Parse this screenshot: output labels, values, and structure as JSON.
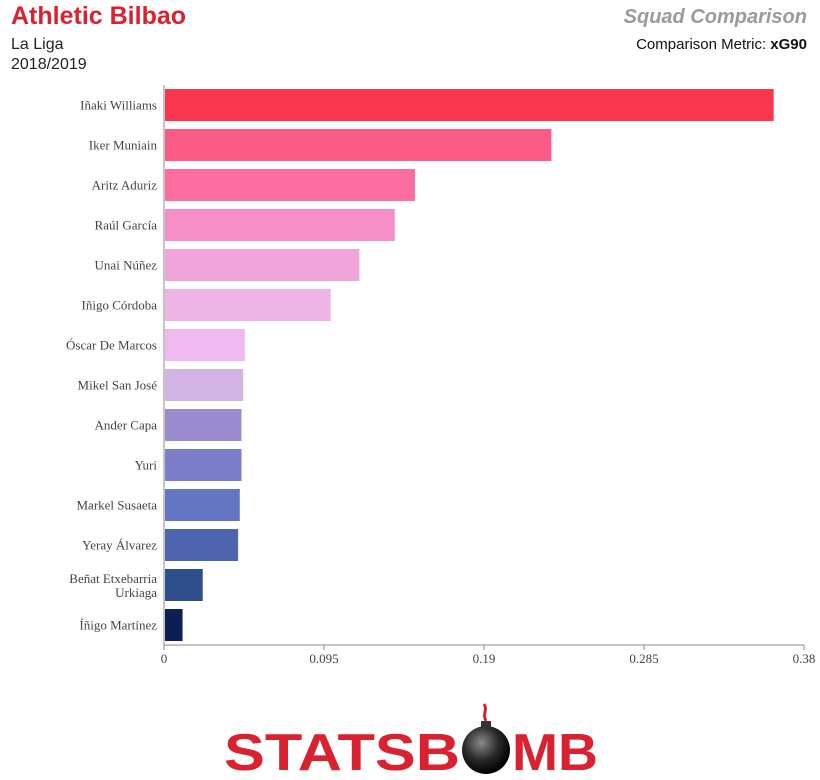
{
  "header": {
    "team": "Athletic Bilbao",
    "league": "La Liga",
    "season": "2018/2019",
    "page_title": "Squad Comparison",
    "metric_label": "Comparison Metric: ",
    "metric_value": "xG90"
  },
  "colors": {
    "title_red": "#d9212f",
    "subtitle_gray": "#9a9a9a"
  },
  "chart_data": {
    "type": "bar",
    "orientation": "horizontal",
    "categories": [
      "Iñaki Williams",
      "Iker Muniain",
      "Aritz Aduriz",
      "Raúl García",
      "Unai Núñez",
      "Iñigo Córdoba",
      "Óscar De Marcos",
      "Mikel San José",
      "Ander Capa",
      "Yuri",
      "Markel Susaeta",
      "Yeray Álvarez",
      "Beñat Etxebarria Urkiaga",
      "Íñigo Martínez"
    ],
    "values": [
      0.362,
      0.23,
      0.149,
      0.137,
      0.116,
      0.099,
      0.048,
      0.047,
      0.046,
      0.046,
      0.045,
      0.044,
      0.023,
      0.011
    ],
    "bar_colors": [
      "#f9374f",
      "#fb5a86",
      "#fc6e9f",
      "#f68fc7",
      "#f1a4da",
      "#efb4e6",
      "#efbaef",
      "#d3b3e4",
      "#9a8bcf",
      "#7c7ec8",
      "#6475c3",
      "#4f64ae",
      "#2f4f8c",
      "#0b1f55"
    ],
    "xticks": [
      "0",
      "0.095",
      "0.19",
      "0.285",
      "0.38"
    ],
    "xlim": [
      0,
      0.38
    ],
    "xlabel": "",
    "ylabel": "",
    "title": "",
    "grid": false
  },
  "branding": {
    "logo_text": "STATSBOMB"
  }
}
